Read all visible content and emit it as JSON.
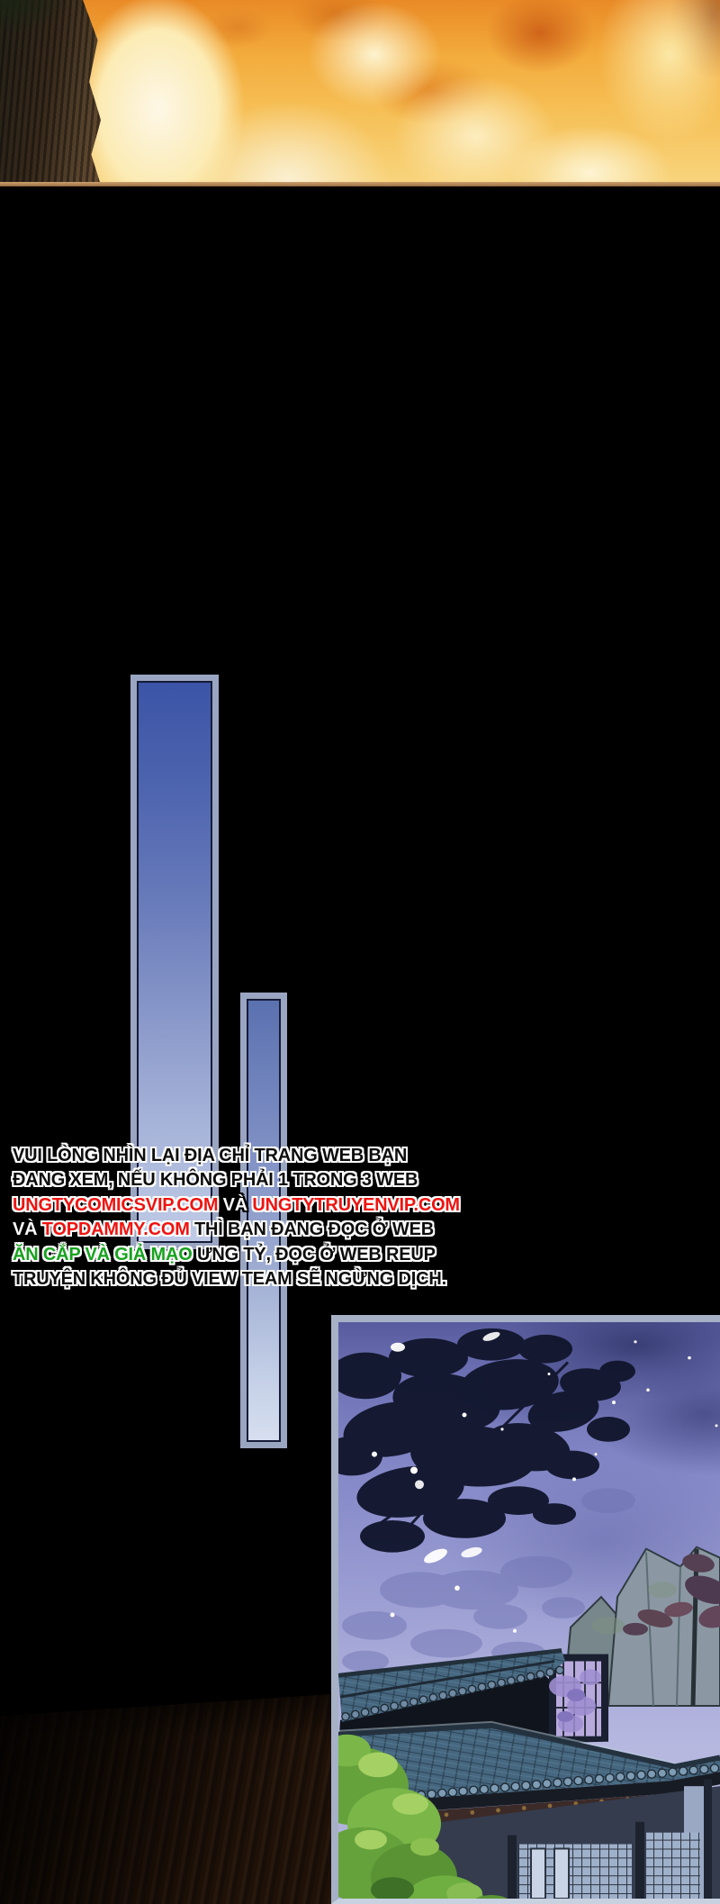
{
  "page": {
    "kind": "webtoon-comic-strip",
    "background": "#000000"
  },
  "fire_panel": {
    "name": "burning-forest-scene",
    "border_color": "#b5895b",
    "flame_core_color": "#fdf7e6",
    "flame_orange_color": "#e98a26",
    "trunk_color": "#37291b"
  },
  "transition_bars": [
    {
      "name": "transition-bar-large",
      "border_color": "#9aa5c1",
      "inner_line_color": "#161c38",
      "fill_top": "#3c54a6",
      "fill_bottom": "#c0cbe6"
    },
    {
      "name": "transition-bar-small",
      "border_color": "#9aa5c1",
      "inner_line_color": "#161c38",
      "fill_top": "#5a71b0",
      "fill_bottom": "#d7dff0"
    }
  ],
  "warning": {
    "text_colors": {
      "black": "#0d0d0d",
      "red": "#ee1410",
      "green": "#18a21f",
      "white": "#fafafa"
    },
    "lines": [
      {
        "segments": [
          {
            "text": "VUI LÒNG NHÌN LẠI ĐỊA CHỈ TRANG WEB BẠN",
            "color": "black"
          }
        ]
      },
      {
        "segments": [
          {
            "text": "ĐANG XEM, NẾU KHÔNG PHẢI 1 TRONG 3 WEB",
            "color": "black"
          }
        ]
      },
      {
        "segments": [
          {
            "text": "UNGTYCOMICSVIP.COM",
            "color": "red"
          },
          {
            "text": " VÀ ",
            "color": "white"
          },
          {
            "text": "UNGTYTRUYENVIP.COM",
            "color": "red"
          }
        ]
      },
      {
        "segments": [
          {
            "text": "VÀ ",
            "color": "white"
          },
          {
            "text": "TOPDAMMY.COM",
            "color": "red"
          },
          {
            "text": " THÌ BẠN ĐANG ĐỌC Ở WEB",
            "color": "black"
          }
        ]
      },
      {
        "segments": [
          {
            "text": "ĂN CẮP VÀ GIẢ MẠO",
            "color": "green"
          },
          {
            "text": " ƯNG TỶ, ĐỌC Ở WEB REUP",
            "color": "black"
          }
        ]
      },
      {
        "segments": [
          {
            "text": "TRUYỆN KHÔNG ĐỦ VIEW TEAM SẼ NGỪNG DỊCH.",
            "color": "black"
          }
        ]
      }
    ]
  },
  "night_panel": {
    "name": "night-courtyard-scene",
    "border_color": "#a6b0c6",
    "palette": {
      "sky_top": "#585c9e",
      "sky_bottom": "#b6b8e0",
      "tree_silhouette": "#12172e",
      "shadow_tree": "#6d71b0",
      "rock": "#8b98a3",
      "roof_tile": "#46677f",
      "foliage_green": "#7ab648",
      "lattice_light": "#9fb0ca",
      "wisteria": "#9e8ed2"
    }
  },
  "wood_foreground": {
    "name": "dark-wood-wall",
    "color": "#241408"
  }
}
